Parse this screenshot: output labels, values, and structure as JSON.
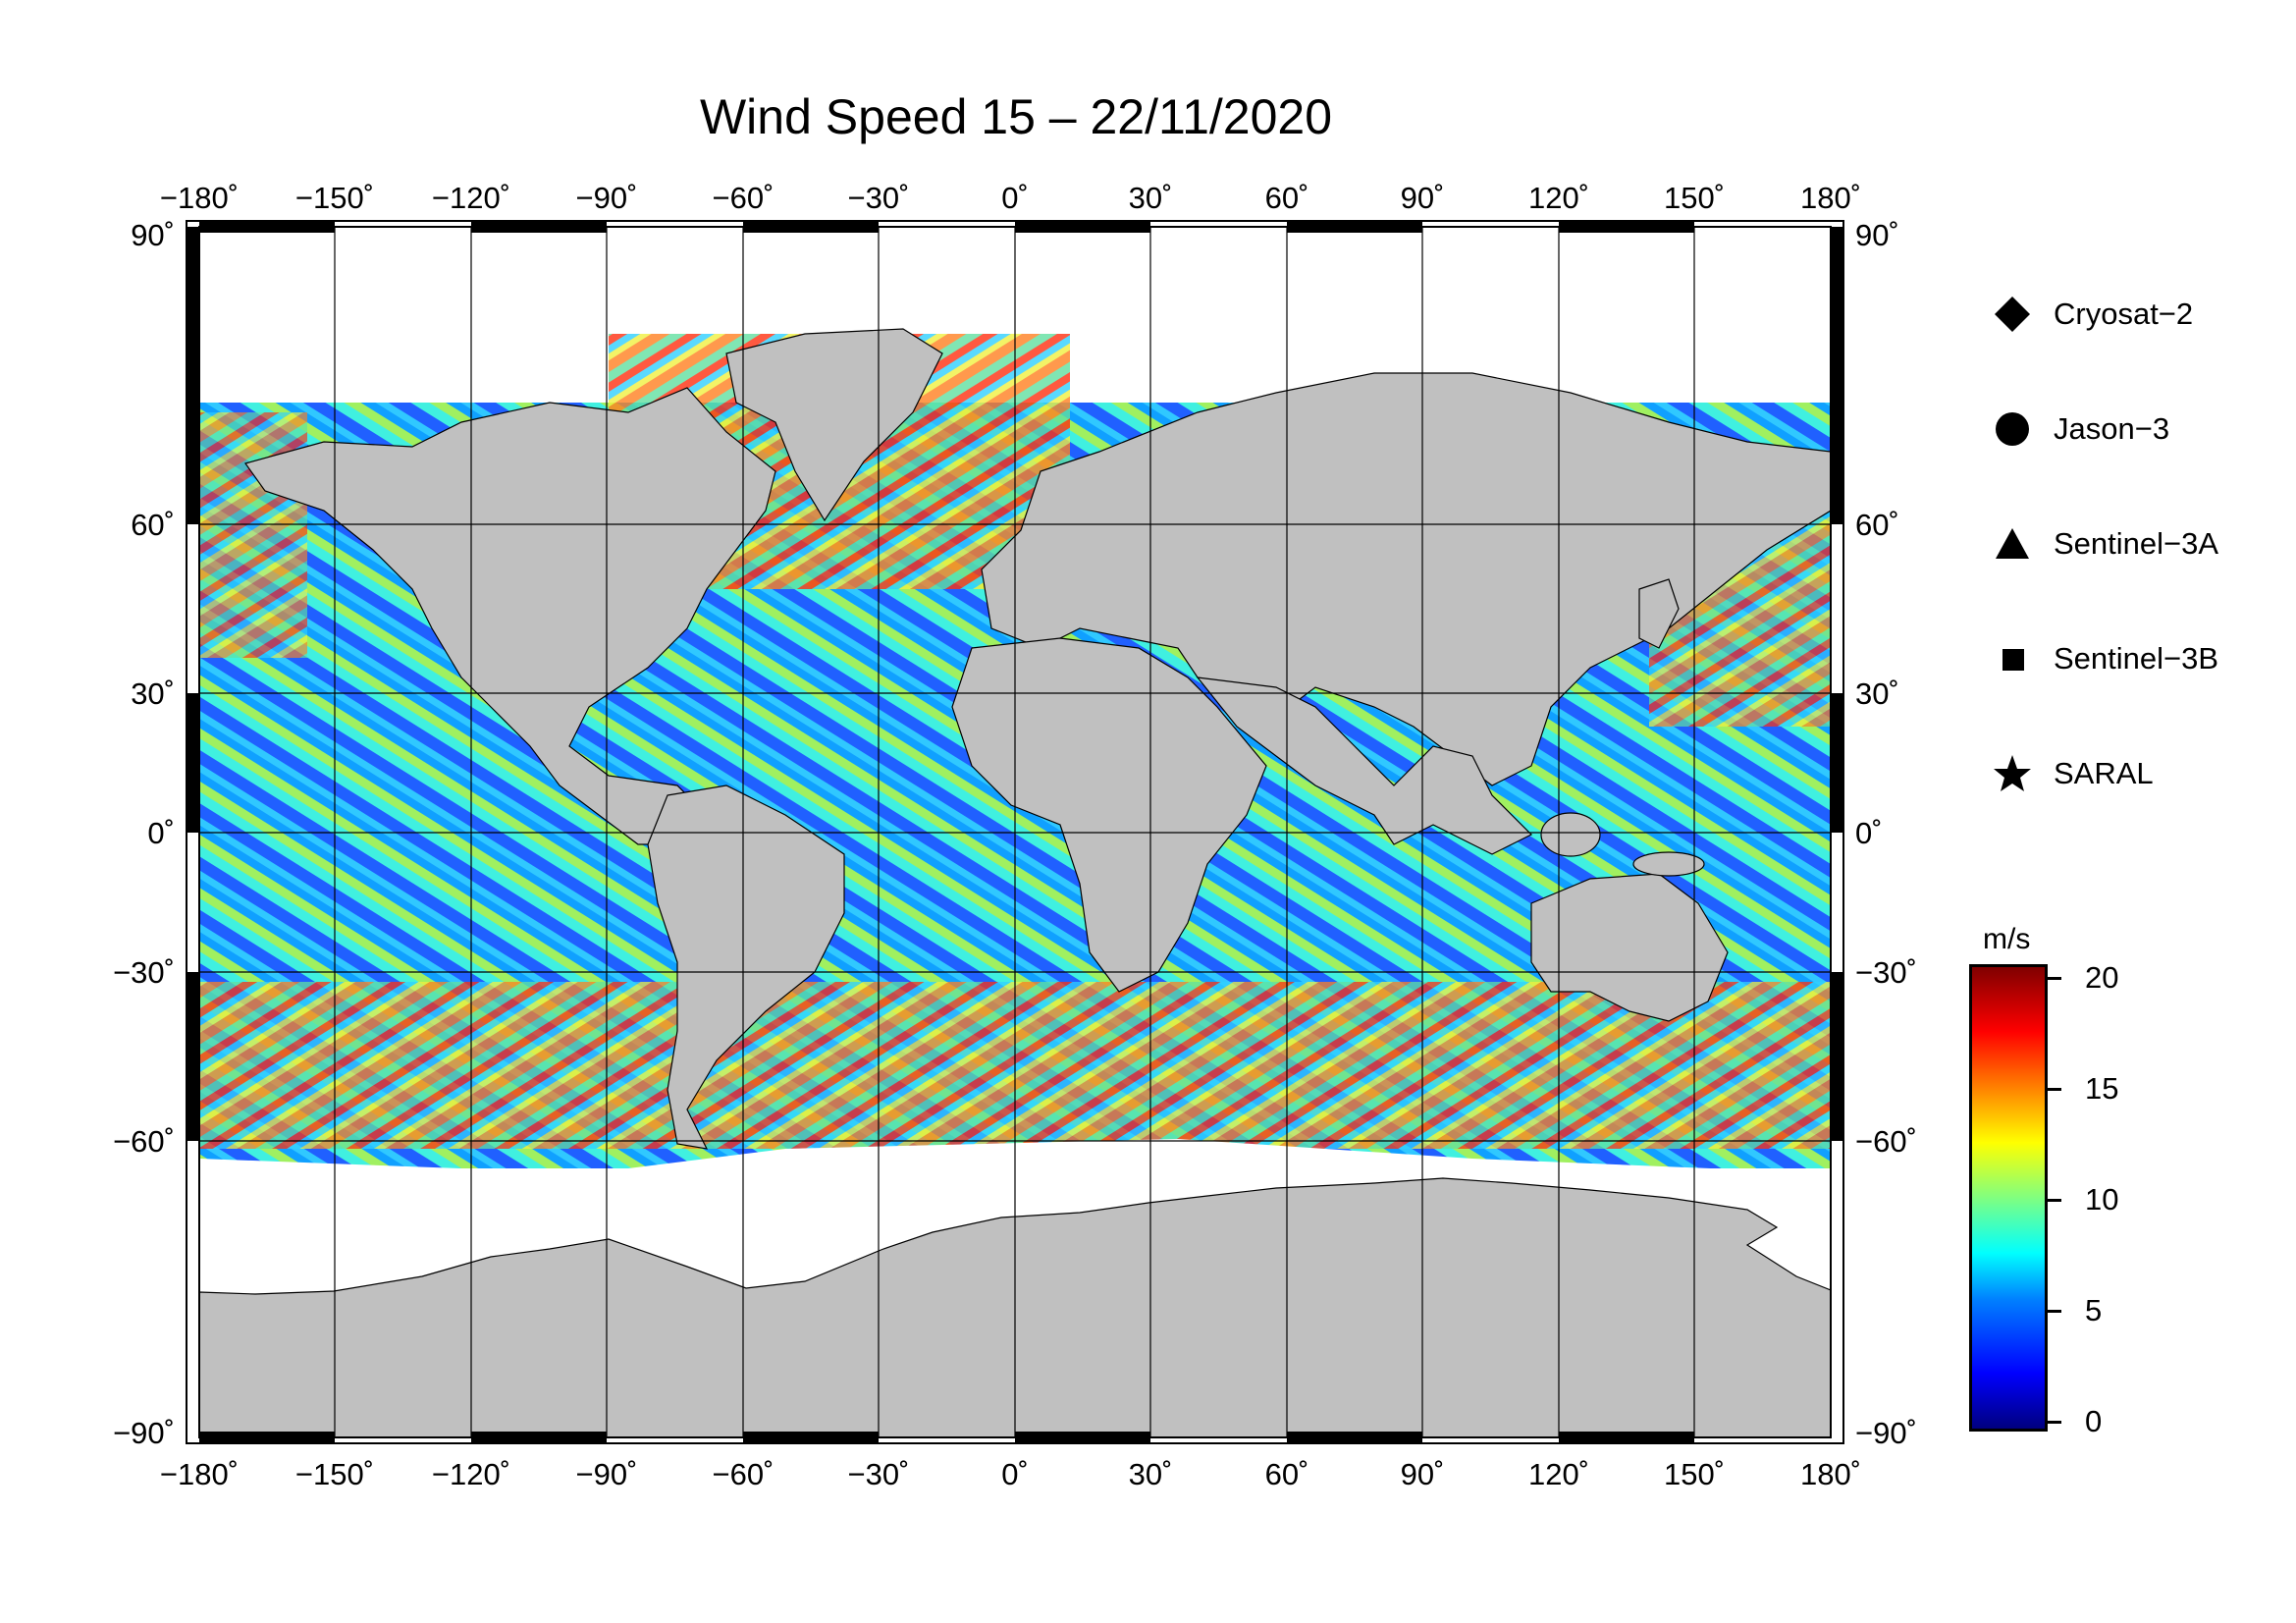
{
  "title": "Wind Speed 15 – 22/11/2020",
  "map": {
    "lon_ticks": [
      "−180˚",
      "−150˚",
      "−120˚",
      "−90˚",
      "−60˚",
      "−30˚",
      "0˚",
      "30˚",
      "60˚",
      "90˚",
      "120˚",
      "150˚",
      "180˚"
    ],
    "lat_ticks": [
      "90˚",
      "60˚",
      "30˚",
      "0˚",
      "−30˚",
      "−60˚",
      "−90˚"
    ],
    "land_color": "#c0c0c0",
    "ice_color": "#ffffff"
  },
  "legend": {
    "items": [
      {
        "label": "Cryosat−2",
        "icon": "diamond-icon"
      },
      {
        "label": "Jason−3",
        "icon": "circle-icon"
      },
      {
        "label": "Sentinel−3A",
        "icon": "triangle-icon"
      },
      {
        "label": "Sentinel−3B",
        "icon": "square-icon"
      },
      {
        "label": "SARAL",
        "icon": "star-icon"
      }
    ]
  },
  "colorbar": {
    "unit": "m/s",
    "ticks": [
      "20",
      "15",
      "10",
      "5",
      "0"
    ],
    "range": [
      0,
      20
    ]
  }
}
